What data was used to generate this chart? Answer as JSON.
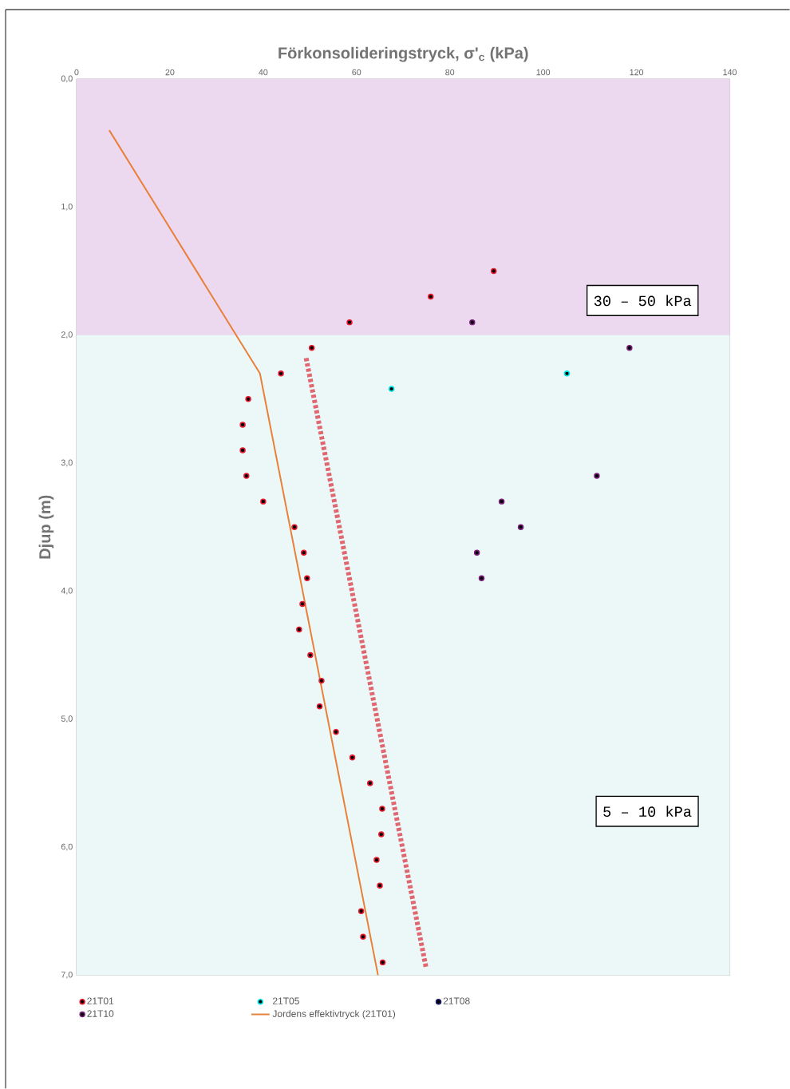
{
  "chart_data": {
    "type": "scatter",
    "xlabel": "Förkonsolideringstryck, σ'$_{c}$ (kPa)",
    "ylabel": "Djup (m)",
    "xlim": [
      0,
      140
    ],
    "xticks": [
      0,
      20,
      40,
      60,
      80,
      100,
      120,
      140
    ],
    "ylim": [
      7,
      0
    ],
    "yticks": [
      {
        "value": 0,
        "label": "0,0"
      },
      {
        "value": 1,
        "label": "1,0"
      },
      {
        "value": 2,
        "label": "2,0"
      },
      {
        "value": 3,
        "label": "3,0"
      },
      {
        "value": 4,
        "label": "4,0"
      },
      {
        "value": 5,
        "label": "5,0"
      },
      {
        "value": 6,
        "label": "6,0"
      },
      {
        "value": 7,
        "label": "7,0"
      }
    ],
    "grid": true,
    "legend": "bottom",
    "marker": "circle",
    "bands": [
      {
        "axis": "y",
        "from": 0,
        "to": 2,
        "color": "#ecd9f0"
      },
      {
        "axis": "y",
        "from": 2,
        "to": 7,
        "color": "#ecf8f8"
      }
    ],
    "annotations": [
      "30 – 50 kPa",
      "5 – 10 kPa"
    ],
    "series": [
      {
        "name": "21T01",
        "color": "#e8192c",
        "x": [
          89.4,
          75.9,
          58.5,
          50.4,
          43.8,
          36.8,
          35.6,
          35.6,
          36.4,
          40.0,
          46.7,
          48.7,
          49.4,
          48.4,
          47.7,
          50.1,
          52.5,
          52.1,
          55.6,
          59.1,
          62.9,
          65.5,
          65.3,
          64.3,
          65.0,
          61.0,
          61.4,
          65.6
        ],
        "values": [
          1.5,
          1.7,
          1.9,
          2.1,
          2.3,
          2.5,
          2.7,
          2.9,
          3.1,
          3.3,
          3.5,
          3.7,
          3.9,
          4.1,
          4.3,
          4.5,
          4.7,
          4.9,
          5.1,
          5.3,
          5.5,
          5.7,
          5.9,
          6.1,
          6.3,
          6.5,
          6.7,
          6.9
        ]
      },
      {
        "name": "21T05",
        "color": "#00e5e5",
        "x": [
          67.5,
          105.1
        ],
        "values": [
          2.42,
          2.3
        ]
      },
      {
        "name": "21T08",
        "color": "#1a1a66"
      },
      {
        "name": "21T10",
        "color": "#7a1f7a",
        "x": [
          84.8,
          118.5,
          111.5,
          91.1,
          95.2,
          85.8,
          86.8
        ],
        "values": [
          1.9,
          2.1,
          3.1,
          3.3,
          3.5,
          3.7,
          3.9
        ]
      },
      {
        "name": "Jordens effektivtryck (21T01)",
        "type": "line",
        "marker": "none",
        "color": "#e8803a",
        "x": [
          7.0,
          39.3,
          64.6
        ],
        "values": [
          0.4,
          2.3,
          7.0
        ]
      },
      {
        "type": "line",
        "marker": "none",
        "line_style": "dashed",
        "color": "#e06670",
        "x": [
          49.2,
          74.9
        ],
        "values": [
          2.18,
          6.94
        ]
      }
    ]
  }
}
